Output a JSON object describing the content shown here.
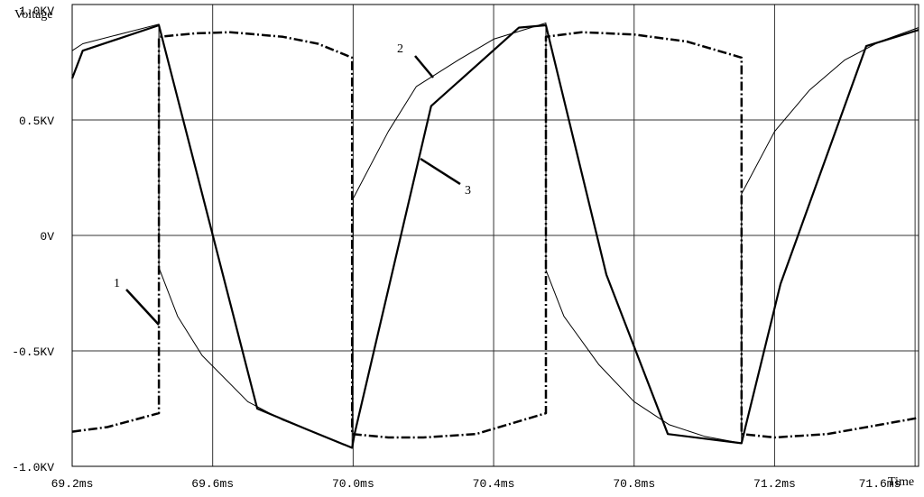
{
  "chart_data": {
    "type": "line",
    "y_title": "Voltage",
    "x_title": "Time",
    "xlim": [
      69.2,
      71.61
    ],
    "ylim": [
      -1.0,
      1.0
    ],
    "xticks": [
      {
        "value": 69.2,
        "label": "69.2ms"
      },
      {
        "value": 69.6,
        "label": "69.6ms"
      },
      {
        "value": 70.0,
        "label": "70.0ms"
      },
      {
        "value": 70.4,
        "label": "70.4ms"
      },
      {
        "value": 70.8,
        "label": "70.8ms"
      },
      {
        "value": 71.2,
        "label": "71.2ms"
      },
      {
        "value": 71.6,
        "label": "71.6ms"
      }
    ],
    "yticks": [
      {
        "value": -1.0,
        "label": "-1.0KV"
      },
      {
        "value": -0.5,
        "label": "-0.5KV"
      },
      {
        "value": 0,
        "label": "0V"
      },
      {
        "value": 0.5,
        "label": "0.5KV"
      },
      {
        "value": 1.0,
        "label": "1.0KV"
      }
    ],
    "grid": true,
    "series": [
      {
        "name": "1",
        "color": "#000000",
        "line_style": "dash-dot",
        "line_width": 2.5,
        "x": [
          69.2,
          69.3,
          69.447,
          69.447,
          69.55,
          69.65,
          69.8,
          69.9,
          69.997,
          69.997,
          70.1,
          70.2,
          70.35,
          70.549,
          70.549,
          70.65,
          70.8,
          70.95,
          71.106,
          71.106,
          71.2,
          71.35,
          71.5,
          71.61
        ],
        "values": [
          -0.85,
          -0.83,
          -0.77,
          0.86,
          0.875,
          0.88,
          0.86,
          0.83,
          0.77,
          -0.86,
          -0.875,
          -0.875,
          -0.86,
          -0.77,
          0.86,
          0.88,
          0.87,
          0.84,
          0.77,
          -0.86,
          -0.875,
          -0.86,
          -0.82,
          -0.79
        ]
      },
      {
        "name": "2",
        "color": "#000000",
        "line_style": "solid",
        "line_width": 1,
        "x": [
          69.2,
          69.23,
          69.447,
          69.447,
          69.5,
          69.57,
          69.7,
          69.8,
          69.9,
          69.997,
          70.0,
          70.1,
          70.18,
          70.3,
          70.4,
          70.549,
          70.549,
          70.6,
          70.7,
          70.8,
          70.9,
          71.0,
          71.106,
          71.106,
          71.2,
          71.3,
          71.4,
          71.5,
          71.61
        ],
        "values": [
          0.8,
          0.83,
          0.915,
          -0.14,
          -0.35,
          -0.52,
          -0.72,
          -0.8,
          -0.86,
          -0.92,
          0.16,
          0.45,
          0.645,
          0.76,
          0.85,
          0.92,
          -0.15,
          -0.35,
          -0.56,
          -0.72,
          -0.82,
          -0.87,
          -0.9,
          0.18,
          0.45,
          0.63,
          0.76,
          0.84,
          0.9
        ]
      },
      {
        "name": "3",
        "color": "#000000",
        "line_style": "solid",
        "line_width": 2.2,
        "x": [
          69.2,
          69.23,
          69.447,
          69.727,
          69.868,
          69.997,
          70.004,
          70.222,
          70.472,
          70.549,
          70.721,
          70.896,
          71.106,
          71.117,
          71.217,
          71.461,
          71.61
        ],
        "values": [
          0.68,
          0.8,
          0.91,
          -0.75,
          -0.84,
          -0.92,
          -0.86,
          0.56,
          0.9,
          0.91,
          -0.17,
          -0.86,
          -0.9,
          -0.83,
          -0.21,
          0.82,
          0.89
        ]
      }
    ],
    "annotations": [
      {
        "text": "1"
      },
      {
        "text": "2"
      },
      {
        "text": "3"
      }
    ]
  }
}
